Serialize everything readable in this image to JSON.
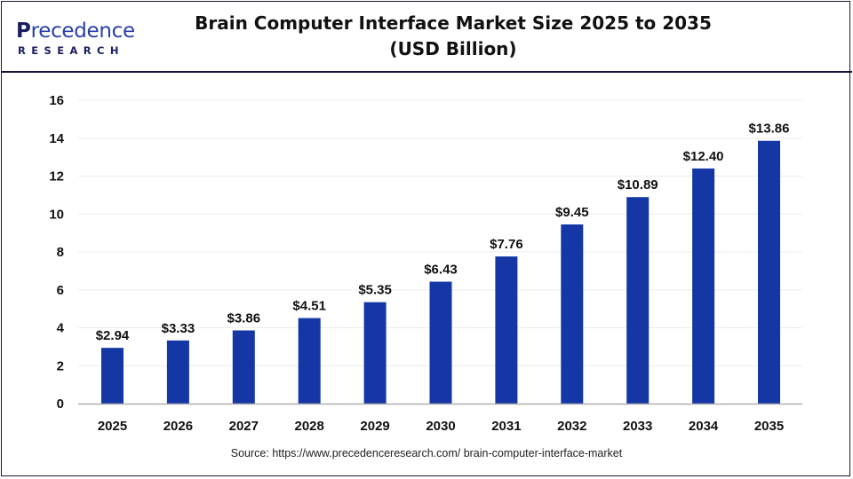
{
  "header": {
    "logo_main": "recedence",
    "logo_initial": "P",
    "logo_sub": "RESEARCH",
    "title_line1": "Brain Computer Interface Market Size 2025 to 2035",
    "title_line2": "(USD Billion)"
  },
  "source": "Source: https://www.precedenceresearch.com/ brain-computer-interface-market",
  "colors": {
    "bar": "#1437a5",
    "grid": "#ececec",
    "axis": "#b0b0b0",
    "brand": "#2a3fa6",
    "brand_dark": "#1c1f5e"
  },
  "chart_data": {
    "type": "bar",
    "title": "Brain Computer Interface Market Size 2025 to 2035 (USD Billion)",
    "xlabel": "",
    "ylabel": "",
    "categories": [
      "2025",
      "2026",
      "2027",
      "2028",
      "2029",
      "2030",
      "2031",
      "2032",
      "2033",
      "2034",
      "2035"
    ],
    "values": [
      2.94,
      3.33,
      3.86,
      4.51,
      5.35,
      6.43,
      7.76,
      9.45,
      10.89,
      12.4,
      13.86
    ],
    "data_labels": [
      "$2.94",
      "$3.33",
      "$3.86",
      "$4.51",
      "$5.35",
      "$6.43",
      "$7.76",
      "$9.45",
      "$10.89",
      "$12.40",
      "$13.86"
    ],
    "ylim": [
      0,
      16
    ],
    "yticks": [
      0,
      2,
      4,
      6,
      8,
      10,
      12,
      14,
      16
    ],
    "grid": true,
    "legend": "none"
  }
}
